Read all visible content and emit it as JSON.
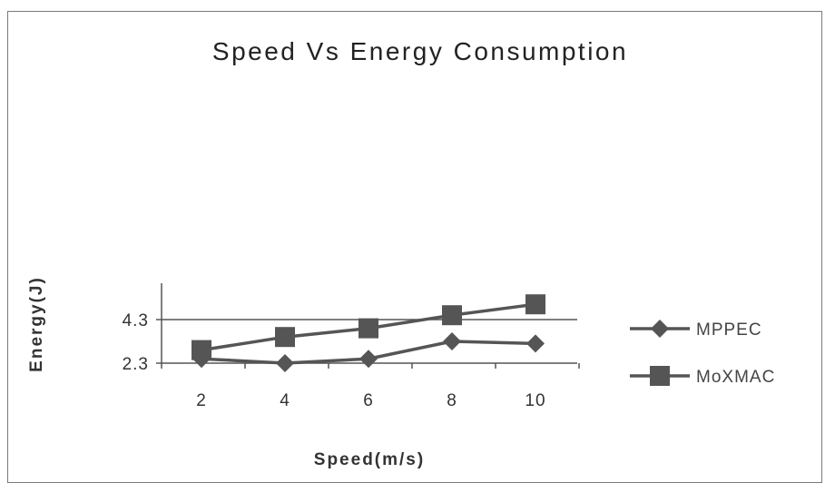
{
  "chart_data": {
    "type": "line",
    "title": "Speed Vs Energy Consumption",
    "xlabel": "Speed(m/s)",
    "ylabel": "Energy(J)",
    "x": [
      2,
      4,
      6,
      8,
      10
    ],
    "ylim": [
      2.3,
      5.5
    ],
    "y_ticks": [
      2.3,
      4.3
    ],
    "y_tick_labels": [
      "2.3",
      "4.3"
    ],
    "x_tick_labels": [
      "2",
      "4",
      "6",
      "8",
      "10"
    ],
    "grid": "horizontal",
    "legend_position": "right",
    "series": [
      {
        "name": "MPPEC",
        "marker": "diamond",
        "color": "#555555",
        "values": [
          2.5,
          2.3,
          2.5,
          3.3,
          3.2
        ]
      },
      {
        "name": "MoXMAC",
        "marker": "square",
        "color": "#555555",
        "values": [
          2.9,
          3.5,
          3.9,
          4.5,
          5.0
        ]
      }
    ]
  }
}
